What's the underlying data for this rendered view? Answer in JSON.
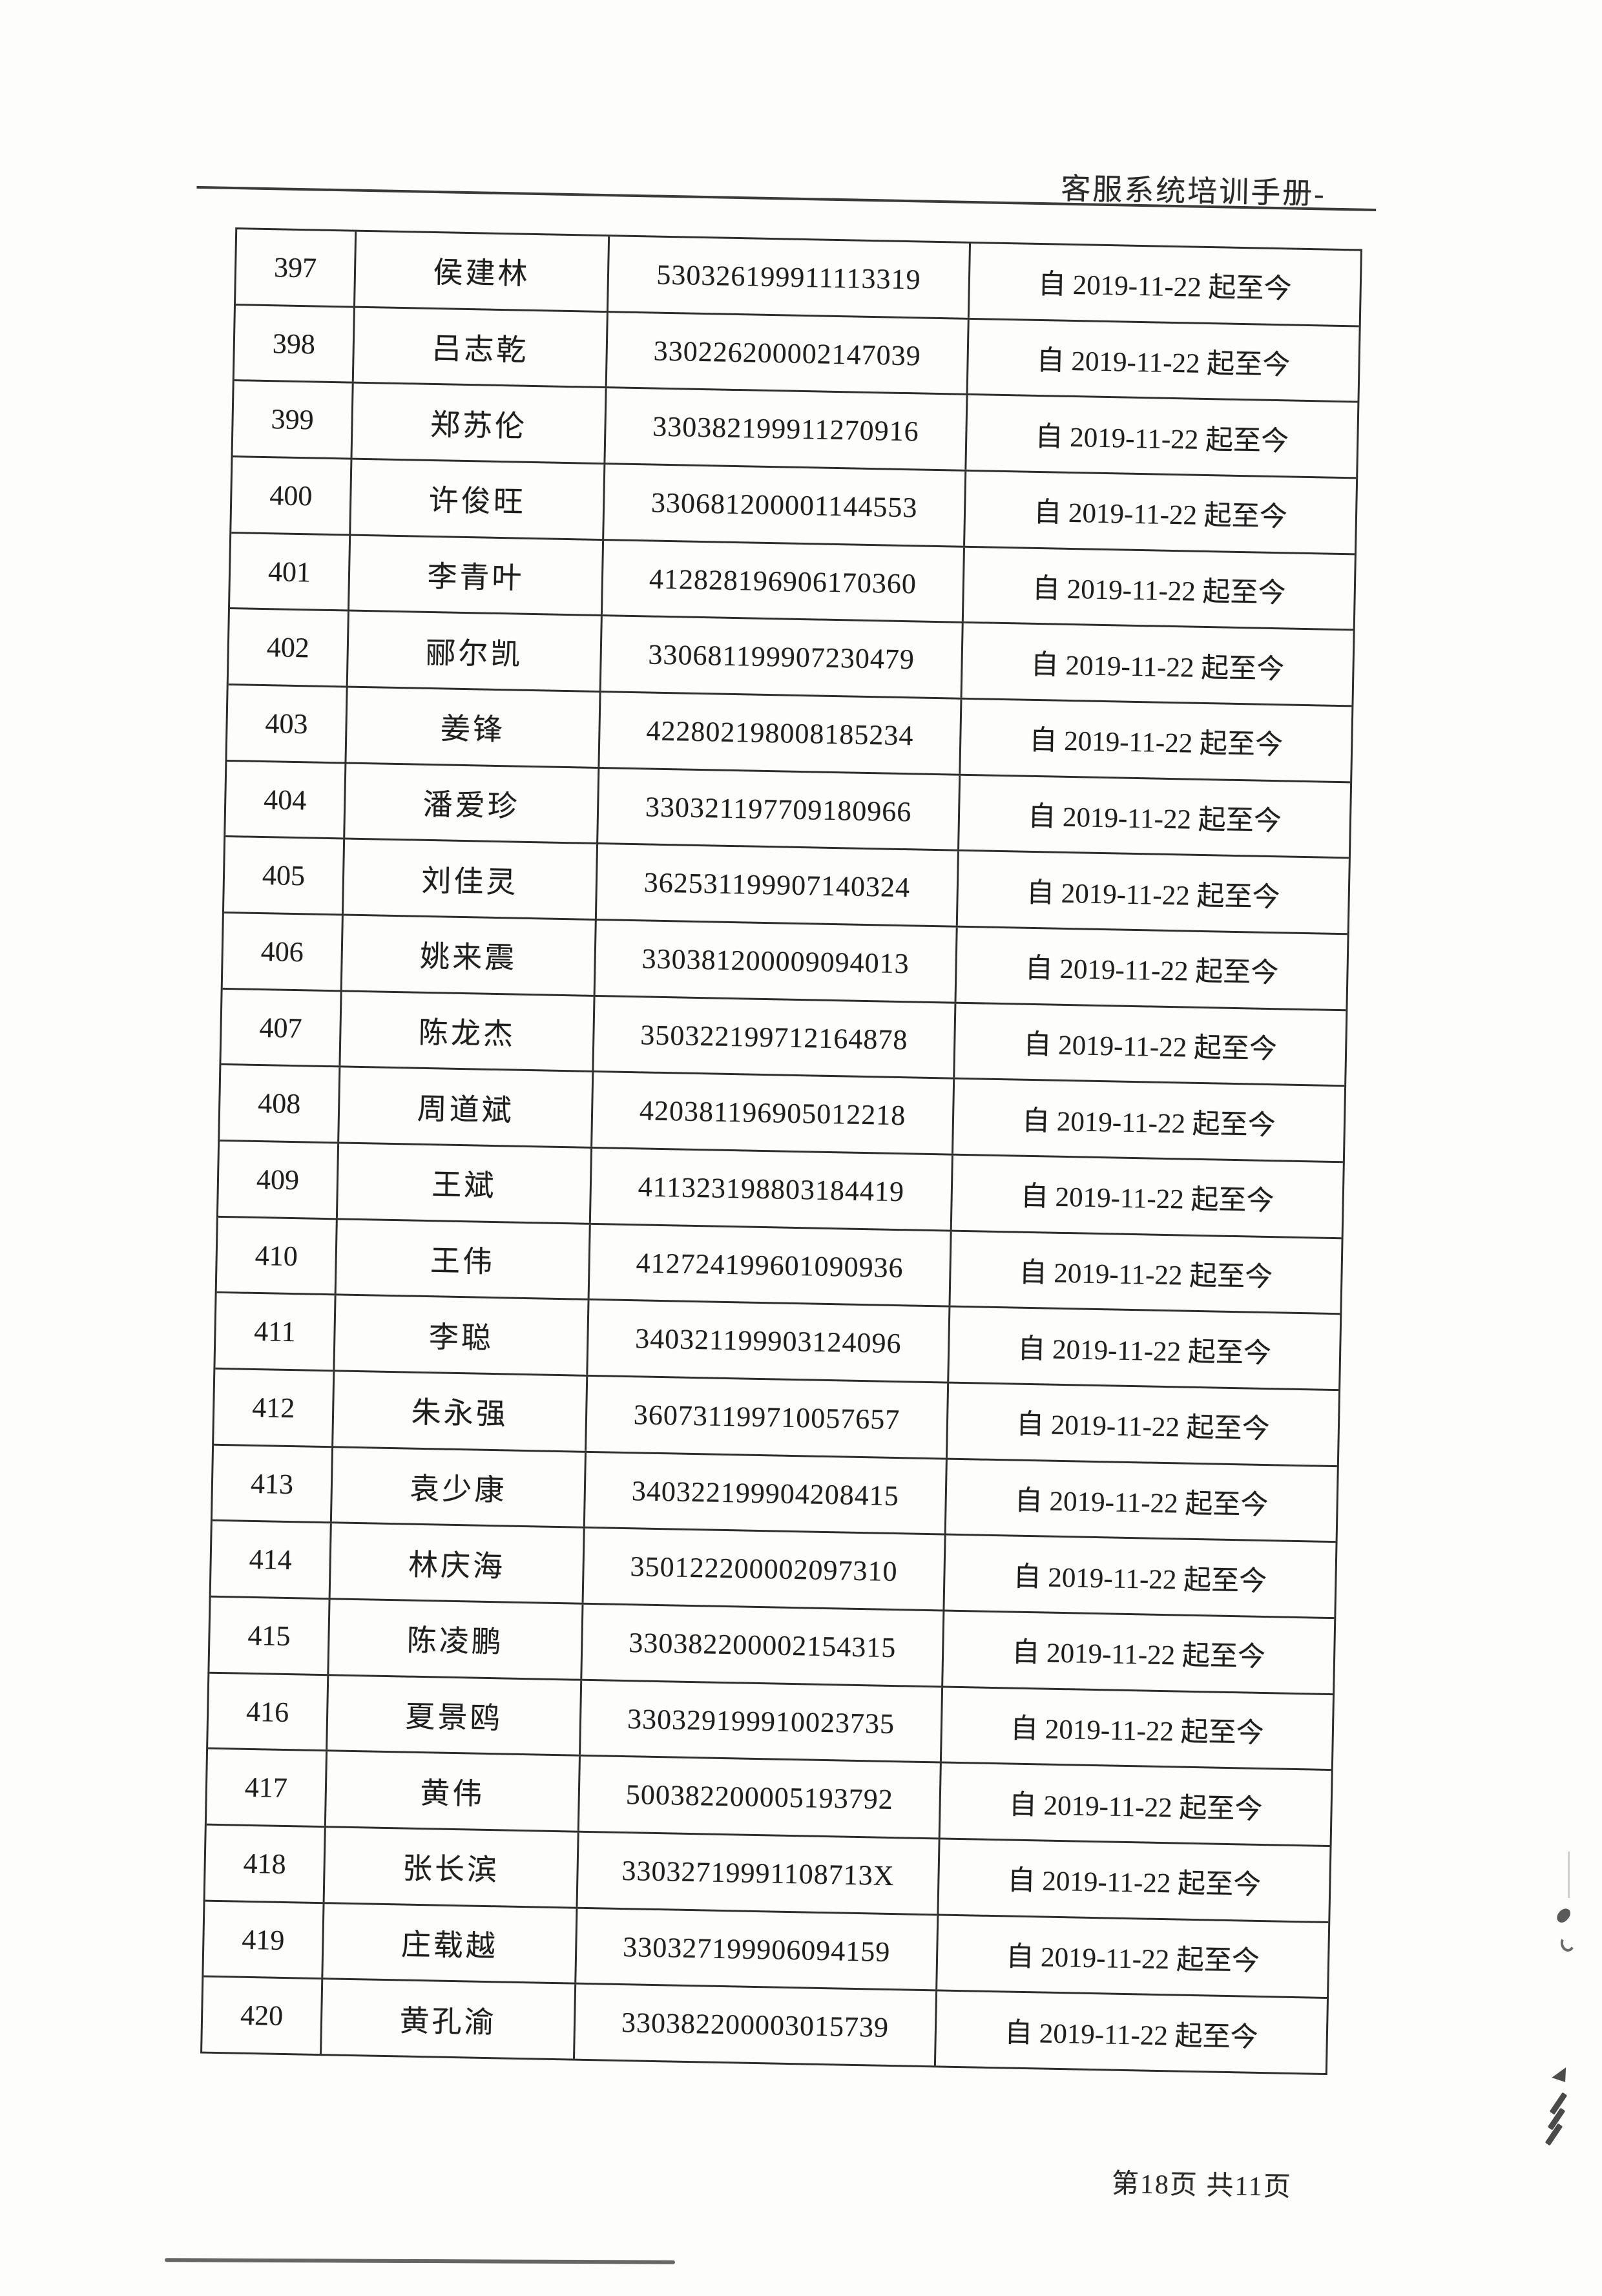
{
  "document": {
    "header_title": "客服系统培训手册-",
    "footer_page_info": "第18页 共11页"
  },
  "colors": {
    "ink": "#2e2e2e",
    "paper": "#fdfdfc"
  },
  "table": {
    "rows": [
      {
        "no": "397",
        "name": "侯建林",
        "id": "530326199911113319",
        "period": "自 2019-11-22 起至今"
      },
      {
        "no": "398",
        "name": "吕志乾",
        "id": "330226200002147039",
        "period": "自 2019-11-22 起至今"
      },
      {
        "no": "399",
        "name": "郑苏伦",
        "id": "330382199911270916",
        "period": "自 2019-11-22 起至今"
      },
      {
        "no": "400",
        "name": "许俊旺",
        "id": "330681200001144553",
        "period": "自 2019-11-22 起至今"
      },
      {
        "no": "401",
        "name": "李青叶",
        "id": "412828196906170360",
        "period": "自 2019-11-22 起至今"
      },
      {
        "no": "402",
        "name": "郦尔凯",
        "id": "330681199907230479",
        "period": "自 2019-11-22 起至今"
      },
      {
        "no": "403",
        "name": "姜锋",
        "id": "422802198008185234",
        "period": "自 2019-11-22 起至今"
      },
      {
        "no": "404",
        "name": "潘爱珍",
        "id": "330321197709180966",
        "period": "自 2019-11-22 起至今"
      },
      {
        "no": "405",
        "name": "刘佳灵",
        "id": "362531199907140324",
        "period": "自 2019-11-22 起至今"
      },
      {
        "no": "406",
        "name": "姚来震",
        "id": "330381200009094013",
        "period": "自 2019-11-22 起至今"
      },
      {
        "no": "407",
        "name": "陈龙杰",
        "id": "350322199712164878",
        "period": "自 2019-11-22 起至今"
      },
      {
        "no": "408",
        "name": "周道斌",
        "id": "420381196905012218",
        "period": "自 2019-11-22 起至今"
      },
      {
        "no": "409",
        "name": "王斌",
        "id": "411323198803184419",
        "period": "自 2019-11-22 起至今"
      },
      {
        "no": "410",
        "name": "王伟",
        "id": "412724199601090936",
        "period": "自 2019-11-22 起至今"
      },
      {
        "no": "411",
        "name": "李聪",
        "id": "340321199903124096",
        "period": "自 2019-11-22 起至今"
      },
      {
        "no": "412",
        "name": "朱永强",
        "id": "360731199710057657",
        "period": "自 2019-11-22 起至今"
      },
      {
        "no": "413",
        "name": "袁少康",
        "id": "340322199904208415",
        "period": "自 2019-11-22 起至今"
      },
      {
        "no": "414",
        "name": "林庆海",
        "id": "350122200002097310",
        "period": "自 2019-11-22 起至今"
      },
      {
        "no": "415",
        "name": "陈凌鹏",
        "id": "330382200002154315",
        "period": "自 2019-11-22 起至今"
      },
      {
        "no": "416",
        "name": "夏景鸥",
        "id": "330329199910023735",
        "period": "自 2019-11-22 起至今"
      },
      {
        "no": "417",
        "name": "黄伟",
        "id": "500382200005193792",
        "period": "自 2019-11-22 起至今"
      },
      {
        "no": "418",
        "name": "张长滨",
        "id": "33032719991108713X",
        "period": "自 2019-11-22 起至今"
      },
      {
        "no": "419",
        "name": "庄载越",
        "id": "330327199906094159",
        "period": "自 2019-11-22 起至今"
      },
      {
        "no": "420",
        "name": "黄孔渝",
        "id": "330382200003015739",
        "period": "自 2019-11-22 起至今"
      }
    ]
  }
}
